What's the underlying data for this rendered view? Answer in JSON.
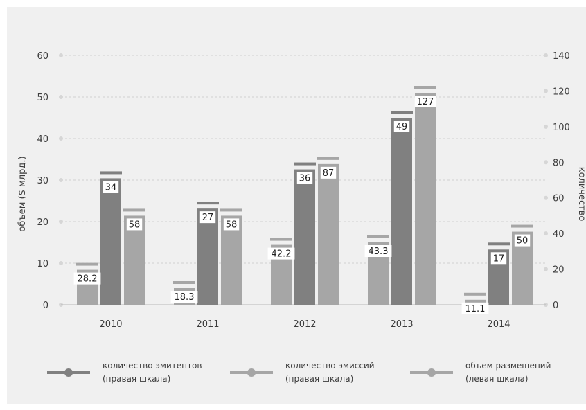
{
  "chart_data": {
    "type": "bar",
    "categories": [
      "2010",
      "2011",
      "2012",
      "2013",
      "2014"
    ],
    "series": [
      {
        "name": "объем размещений",
        "name_line2": "(левая шкала)",
        "axis": "left",
        "color": "#a6a6a6",
        "values": [
          8.4,
          4.0,
          14.4,
          15.0,
          1.2
        ],
        "labels": [
          "28.2",
          "18.3",
          "42.2",
          "43.3",
          "11.1"
        ]
      },
      {
        "name": "количество эмитентов",
        "name_line2": "(правая шкала)",
        "axis": "right",
        "color": "#808080",
        "values": [
          71,
          54,
          76,
          105,
          31
        ],
        "labels": [
          "34",
          "27",
          "36",
          "49",
          "17"
        ]
      },
      {
        "name": "количество эмиссий",
        "name_line2": "(правая шкала)",
        "axis": "right",
        "color": "#a6a6a6",
        "values": [
          50,
          50,
          79,
          119,
          41
        ],
        "labels": [
          "58",
          "58",
          "87",
          "127",
          "50"
        ]
      }
    ],
    "ylabel": "объем ($ млрд.)",
    "ylabel_right": "количество",
    "ylim": [
      0,
      60
    ],
    "ylim_right": [
      0,
      140
    ],
    "yticks": [
      "0",
      "10",
      "20",
      "30",
      "40",
      "50",
      "60"
    ],
    "yticks_right": [
      "0",
      "20",
      "40",
      "60",
      "80",
      "100",
      "120",
      "140"
    ],
    "legend_order": [
      1,
      2,
      0
    ],
    "grid": true,
    "legend_position": "bottom"
  }
}
